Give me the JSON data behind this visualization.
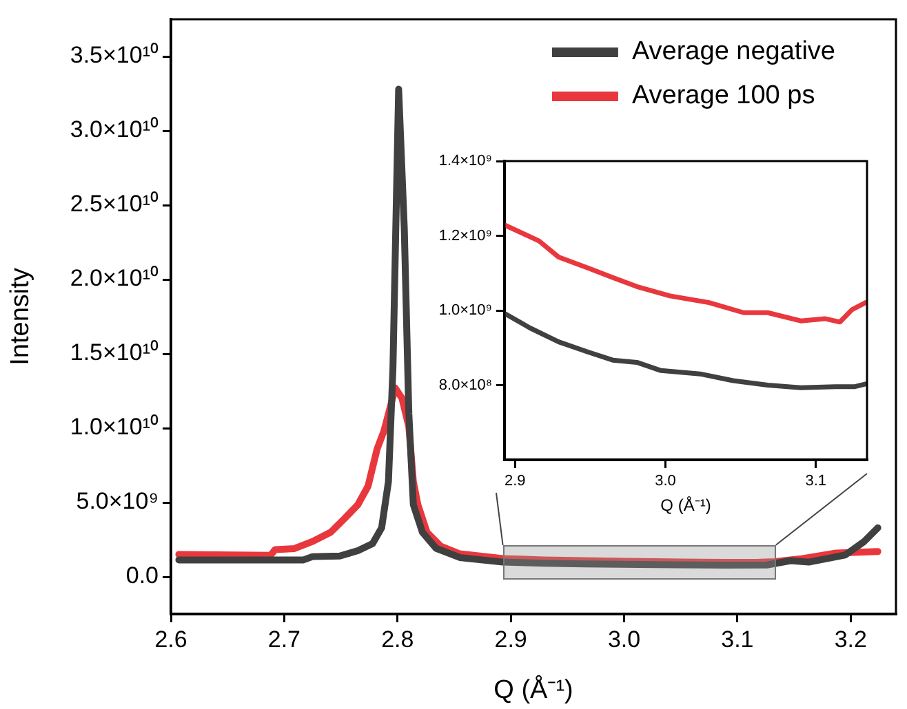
{
  "chart_data": [
    {
      "type": "line",
      "xlabel": "Q (Å⁻¹)",
      "ylabel": "Intensity",
      "xlim": [
        2.6,
        3.24
      ],
      "ylim": [
        -2500000000.0,
        37500000000.0
      ],
      "xticks": [
        2.6,
        2.7,
        2.8,
        2.9,
        {
          "value": 3.0,
          "label": "3.0"
        },
        3.1,
        3.2
      ],
      "yticks": [
        {
          "value": 0,
          "label": "0.0"
        },
        {
          "value": 5000000000.0,
          "label": "5.0×10⁹"
        },
        {
          "value": 10000000000.0,
          "label": "1.0×10¹⁰"
        },
        {
          "value": 15000000000.0,
          "label": "1.5×10¹⁰"
        },
        {
          "value": 20000000000.0,
          "label": "2.0×10¹⁰"
        },
        {
          "value": 25000000000.0,
          "label": "2.5×10¹⁰"
        },
        {
          "value": 30000000000.0,
          "label": "3.0×10¹⁰"
        },
        {
          "value": 35000000000.0,
          "label": "3.5×10¹⁰"
        }
      ],
      "grid": false,
      "legend": "top right",
      "marker": "none",
      "line_style": "solid",
      "series": [
        {
          "name": "Average negative",
          "color": "#404040",
          "x": [
            2.607,
            2.717,
            2.725,
            2.749,
            2.765,
            2.778,
            2.786,
            2.792,
            2.796,
            2.801,
            2.806,
            2.81,
            2.814,
            2.822,
            2.834,
            2.855,
            2.893,
            2.929,
            2.965,
            2.997,
            3.045,
            3.09,
            3.126,
            3.147,
            3.163,
            3.195,
            3.212,
            3.224
          ],
          "values": [
            1140000000.0,
            1140000000.0,
            1360000000.0,
            1400000000.0,
            1760000000.0,
            2230000000.0,
            3300000000.0,
            6400000000.0,
            14100000000.0,
            32800000000.0,
            23400000000.0,
            11000000000.0,
            4850000000.0,
            3000000000.0,
            1920000000.0,
            1300000000.0,
            990000000.0,
            920000000.0,
            870000000.0,
            840000000.0,
            810000000.0,
            790000000.0,
            800000000.0,
            1090000000.0,
            990000000.0,
            1460000000.0,
            2380000000.0,
            3300000000.0
          ]
        },
        {
          "name": "Average 100 ps",
          "color": "#e8383d",
          "x": [
            2.607,
            2.688,
            2.692,
            2.709,
            2.725,
            2.741,
            2.753,
            2.765,
            2.774,
            2.782,
            2.788,
            2.798,
            2.804,
            2.81,
            2.814,
            2.818,
            2.826,
            2.838,
            2.855,
            2.893,
            2.929,
            2.965,
            3.003,
            3.052,
            3.09,
            3.116,
            3.133,
            3.155,
            3.187,
            3.224
          ],
          "values": [
            1510000000.0,
            1450000000.0,
            1830000000.0,
            1900000000.0,
            2380000000.0,
            3000000000.0,
            3900000000.0,
            4850000000.0,
            6100000000.0,
            8600000000.0,
            9800000000.0,
            12700000000.0,
            12000000000.0,
            10100000000.0,
            6400000000.0,
            4850000000.0,
            3000000000.0,
            2070000000.0,
            1550000000.0,
            1230000000.0,
            1140000000.0,
            1090000000.0,
            1040000000.0,
            990000000.0,
            970000000.0,
            970000000.0,
            1020000000.0,
            1200000000.0,
            1600000000.0,
            1700000000.0
          ]
        }
      ]
    },
    {
      "type": "line",
      "xlabel": "Q (Å⁻¹)",
      "xlim": [
        2.893,
        3.134
      ],
      "ylim": [
        600000000.0,
        1400000000.0
      ],
      "xticks": [
        2.9,
        {
          "value": 3.0,
          "label": "3.0"
        },
        3.1
      ],
      "yticks": [
        {
          "value": 800000000.0,
          "label": "8.0×10⁸"
        },
        {
          "value": 1000000000.0,
          "label": "1.0×10⁹"
        },
        {
          "value": 1200000000.0,
          "label": "1.2×10⁹"
        },
        {
          "value": 1400000000.0,
          "label": "1.4×10⁹"
        }
      ],
      "grid": false,
      "marker": "none",
      "line_style": "solid",
      "series": [
        {
          "color": "#404040",
          "x": [
            2.893,
            2.91,
            2.929,
            2.949,
            2.965,
            2.981,
            2.997,
            3.023,
            3.045,
            3.068,
            3.09,
            3.113,
            3.126,
            3.133
          ],
          "values": [
            992000000.0,
            953000000.0,
            916000000.0,
            888000000.0,
            867000000.0,
            861000000.0,
            839000000.0,
            830000000.0,
            812000000.0,
            800000000.0,
            793000000.0,
            796000000.0,
            796000000.0,
            803000000.0
          ]
        },
        {
          "color": "#e8383d",
          "x": [
            2.893,
            2.916,
            2.929,
            2.949,
            2.965,
            2.981,
            3.003,
            3.029,
            3.052,
            3.068,
            3.09,
            3.106,
            3.116,
            3.124,
            3.133
          ],
          "values": [
            1229000000.0,
            1186000000.0,
            1143000000.0,
            1113000000.0,
            1088000000.0,
            1064000000.0,
            1039000000.0,
            1021000000.0,
            994000000.0,
            994000000.0,
            972000000.0,
            978000000.0,
            969000000.0,
            1002000000.0,
            1021000000.0
          ]
        }
      ]
    }
  ]
}
